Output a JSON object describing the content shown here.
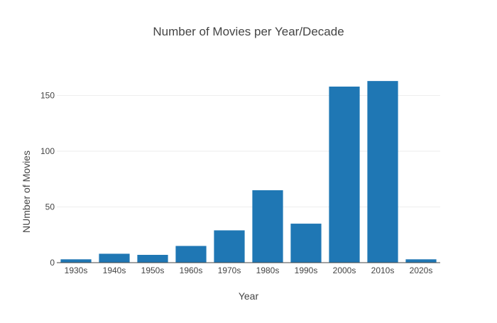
{
  "chart_data": {
    "type": "bar",
    "title": "Number of Movies per Year/Decade",
    "xlabel": "Year",
    "ylabel": "NUmber of Movies",
    "categories": [
      "1930s",
      "1940s",
      "1950s",
      "1960s",
      "1970s",
      "1980s",
      "1990s",
      "2000s",
      "2010s",
      "2020s"
    ],
    "values": [
      3,
      8,
      7,
      15,
      29,
      65,
      35,
      158,
      163,
      3
    ],
    "ylim": [
      0,
      172
    ],
    "yticks": [
      0,
      50,
      100,
      150
    ],
    "grid": true,
    "legend": "none",
    "bar_color": "#1f77b4"
  }
}
